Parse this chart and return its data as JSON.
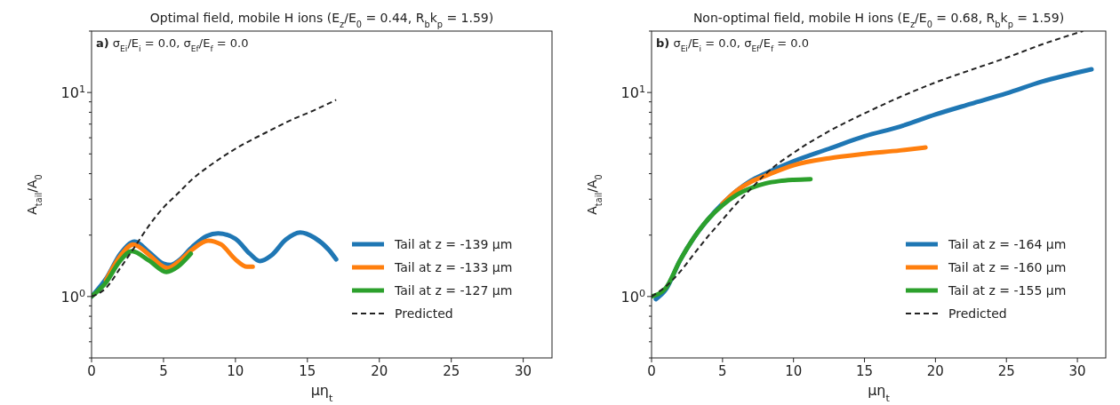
{
  "chart_data": [
    {
      "type": "line",
      "title": "Optimal field, mobile H ions (E$_{z}$/E$_{0}$ = 0.44, R$_{b}$k$_{p}$ = 1.59)",
      "xlabel": "μη$_{t}$",
      "ylabel": "A$_{tail}$/A$_{0}$",
      "annotations": [
        "a) σ$_{Ei}$/E$_{i}$ = 0.0, σ$_{Ef}$/E$_{f}$ = 0.0"
      ],
      "log": "y",
      "legend": "bottom right",
      "marker": "none",
      "grid": false,
      "xlim": [
        0,
        32
      ],
      "xticks": [
        0,
        5,
        10,
        15,
        20,
        25,
        30
      ],
      "ylim": [
        0.5,
        20
      ],
      "yticks": [
        {
          "value": 0.5,
          "label": null
        },
        {
          "value": 0.6,
          "label": null
        },
        {
          "value": 0.7,
          "label": null
        },
        {
          "value": 0.8,
          "label": null
        },
        {
          "value": 0.9,
          "label": null
        },
        {
          "value": 1,
          "label": "10$^{0}$"
        },
        {
          "value": 2,
          "label": null
        },
        {
          "value": 3,
          "label": null
        },
        {
          "value": 4,
          "label": null
        },
        {
          "value": 5,
          "label": null
        },
        {
          "value": 6,
          "label": null
        },
        {
          "value": 7,
          "label": null
        },
        {
          "value": 8,
          "label": null
        },
        {
          "value": 9,
          "label": null
        },
        {
          "value": 10,
          "label": "10$^{1}$"
        },
        {
          "value": 20,
          "label": null
        }
      ],
      "series": [
        {
          "name": "Tail at z = -139 μm",
          "color": "#1f77b4",
          "line_style": "solid",
          "x": [
            0,
            1,
            2,
            3,
            4,
            5,
            5.5,
            6,
            7,
            8,
            8.8,
            10,
            11,
            11.7,
            12.5,
            13.5,
            14.5,
            15.5,
            16.5,
            17
          ],
          "values": [
            1.0,
            1.22,
            1.62,
            1.86,
            1.65,
            1.45,
            1.43,
            1.49,
            1.75,
            1.98,
            2.04,
            1.92,
            1.62,
            1.49,
            1.59,
            1.9,
            2.06,
            1.94,
            1.69,
            1.52
          ]
        },
        {
          "name": "Tail at z = -133 μm",
          "color": "#ff7f0e",
          "line_style": "solid",
          "x": [
            1,
            2,
            2.9,
            4,
            5,
            5.3,
            6,
            7,
            8.1,
            9,
            10,
            10.8,
            11.2
          ],
          "values": [
            1.2,
            1.58,
            1.8,
            1.6,
            1.4,
            1.38,
            1.47,
            1.7,
            1.88,
            1.8,
            1.52,
            1.4,
            1.4
          ]
        },
        {
          "name": "Tail at z = -127 μm",
          "color": "#2ca02c",
          "line_style": "solid",
          "x": [
            0,
            1,
            2,
            2.8,
            4,
            5.2,
            6,
            6.9
          ],
          "values": [
            1.0,
            1.17,
            1.5,
            1.67,
            1.5,
            1.32,
            1.4,
            1.62
          ]
        },
        {
          "name": "Predicted",
          "color": "#222222",
          "line_style": "dashed",
          "x": [
            0,
            1,
            2,
            3,
            4,
            5,
            6,
            7,
            8,
            9,
            10,
            12,
            14,
            15.5,
            17
          ],
          "values": [
            1.0,
            1.1,
            1.38,
            1.75,
            2.23,
            2.73,
            3.2,
            3.76,
            4.27,
            4.78,
            5.3,
            6.3,
            7.4,
            8.2,
            9.2
          ]
        }
      ]
    },
    {
      "type": "line",
      "title": "Non-optimal field, mobile H ions (E$_{z}$/E$_{0}$ = 0.68, R$_{b}$k$_{p}$ = 1.59)",
      "xlabel": "μη$_{t}$",
      "ylabel": "A$_{tail}$/A$_{0}$",
      "annotations": [
        "b) σ$_{Ei}$/E$_{i}$ = 0.0, σ$_{Ef}$/E$_{f}$ = 0.0"
      ],
      "log": "y",
      "legend": "bottom right",
      "marker": "none",
      "grid": false,
      "xlim": [
        0,
        32
      ],
      "xticks": [
        0,
        5,
        10,
        15,
        20,
        25,
        30
      ],
      "ylim": [
        0.5,
        20
      ],
      "yticks": [
        {
          "value": 0.5,
          "label": null
        },
        {
          "value": 0.6,
          "label": null
        },
        {
          "value": 0.7,
          "label": null
        },
        {
          "value": 0.8,
          "label": null
        },
        {
          "value": 0.9,
          "label": null
        },
        {
          "value": 1,
          "label": "10$^{0}$"
        },
        {
          "value": 2,
          "label": null
        },
        {
          "value": 3,
          "label": null
        },
        {
          "value": 4,
          "label": null
        },
        {
          "value": 5,
          "label": null
        },
        {
          "value": 6,
          "label": null
        },
        {
          "value": 7,
          "label": null
        },
        {
          "value": 8,
          "label": null
        },
        {
          "value": 9,
          "label": null
        },
        {
          "value": 10,
          "label": "10$^{1}$"
        },
        {
          "value": 20,
          "label": null
        }
      ],
      "series": [
        {
          "name": "Tail at z = -164 μm",
          "color": "#1f77b4",
          "line_style": "solid",
          "x": [
            0.3,
            1,
            2,
            3,
            4,
            5,
            6,
            7,
            8,
            10,
            12.5,
            15,
            17.5,
            20,
            22.5,
            25,
            27.5,
            31
          ],
          "values": [
            0.97,
            1.08,
            1.5,
            1.95,
            2.4,
            2.85,
            3.3,
            3.7,
            4.0,
            4.6,
            5.3,
            6.1,
            6.8,
            7.8,
            8.8,
            9.9,
            11.3,
            13.0
          ]
        },
        {
          "name": "Tail at z = -160 μm",
          "color": "#ff7f0e",
          "line_style": "solid",
          "x": [
            5,
            6,
            7,
            8,
            10,
            12.5,
            15,
            17.5,
            19.3
          ],
          "values": [
            2.85,
            3.3,
            3.65,
            3.9,
            4.4,
            4.76,
            5.0,
            5.2,
            5.38
          ]
        },
        {
          "name": "Tail at z = -155 μm",
          "color": "#2ca02c",
          "line_style": "solid",
          "x": [
            0,
            1,
            2,
            3,
            4,
            5,
            6,
            7,
            8,
            9,
            10,
            11.2
          ],
          "values": [
            1.0,
            1.1,
            1.5,
            1.95,
            2.4,
            2.8,
            3.15,
            3.4,
            3.58,
            3.68,
            3.73,
            3.76
          ]
        },
        {
          "name": "Predicted",
          "color": "#222222",
          "line_style": "dashed",
          "x": [
            0,
            1,
            2,
            3,
            4,
            5,
            6,
            7,
            8,
            10,
            12.5,
            15,
            17.5,
            20,
            22.5,
            25,
            27.5,
            30.4
          ],
          "values": [
            1.0,
            1.12,
            1.32,
            1.62,
            1.98,
            2.38,
            2.86,
            3.37,
            3.97,
            5.06,
            6.46,
            7.9,
            9.5,
            11.2,
            12.9,
            14.8,
            17.2,
            20
          ]
        }
      ]
    }
  ]
}
